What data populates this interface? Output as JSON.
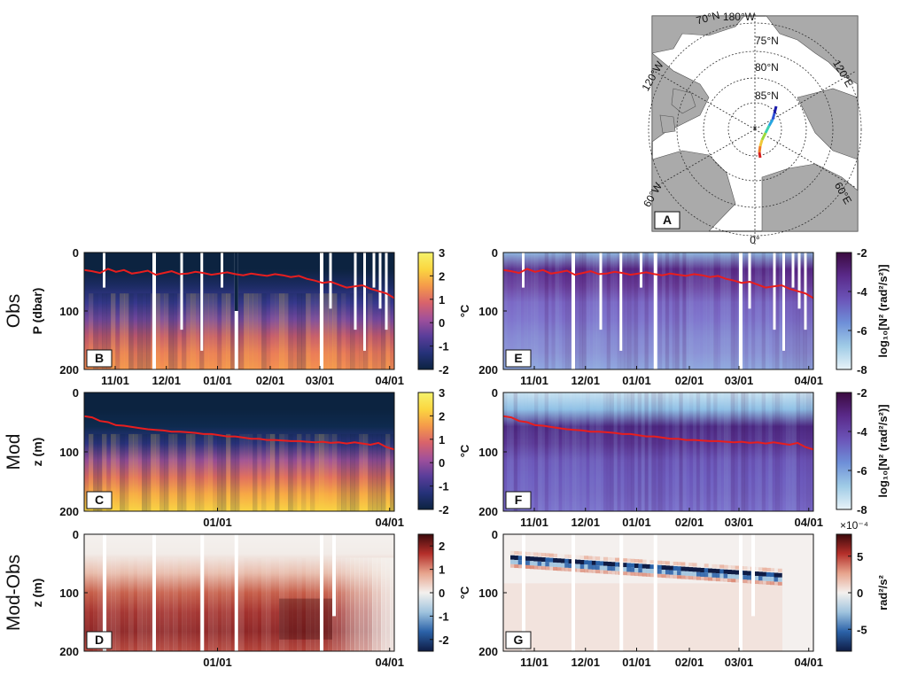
{
  "row_labels": [
    "Obs",
    "Mod",
    "Mod-Obs"
  ],
  "colors": {
    "temp_scale": [
      "#0c2340",
      "#26327a",
      "#5a3d9a",
      "#a0509b",
      "#d9636b",
      "#f59a4a",
      "#fbd640",
      "#f5f36b"
    ],
    "n2_scale": [
      "#e8f3f8",
      "#9fcbe6",
      "#6e8fd8",
      "#6b54b8",
      "#5a2a8a",
      "#3b0a40"
    ],
    "diff_scale": [
      "#0f1c45",
      "#2b62a8",
      "#9fc3de",
      "#f4f1ee",
      "#e7a48d",
      "#b52f2a",
      "#3c0a0c"
    ],
    "mld_line": "#e81e1e",
    "land": "#aaaaaa",
    "ocean": "#ffffff"
  },
  "chart_data": [
    {
      "panel": "A",
      "type": "map",
      "lat_labels": [
        "75°N",
        "80°N",
        "85°N"
      ],
      "lon_labels": [
        "70°N",
        "180°W",
        "120°W",
        "120°E",
        "60°W",
        "60°E",
        "0°"
      ],
      "track": "drifting buoy track, colored by time (blue → red)"
    },
    {
      "panel": "B",
      "type": "heatmap",
      "ylabel": "P (dbar)",
      "cbar_label": "°C",
      "ylim": [
        0,
        200
      ],
      "clim": [
        -2,
        3
      ],
      "yticks": [
        0,
        100,
        200
      ],
      "cticks": [
        3,
        2,
        1,
        0,
        -1,
        -2
      ],
      "xticks": [
        "11/01",
        "12/01",
        "01/01",
        "02/01",
        "03/01",
        "04/01"
      ],
      "mld_series": [
        30,
        32,
        35,
        28,
        33,
        30,
        36,
        34,
        31,
        38,
        35,
        32,
        37,
        36,
        33,
        35,
        38,
        36,
        34,
        37,
        39,
        36,
        38,
        40,
        37,
        39,
        42,
        40,
        45,
        48,
        52,
        50,
        55,
        60,
        58,
        56,
        62,
        66,
        70,
        78
      ]
    },
    {
      "panel": "C",
      "type": "heatmap",
      "ylabel": "z (m)",
      "cbar_label": "°C",
      "ylim": [
        0,
        200
      ],
      "clim": [
        -2,
        3
      ],
      "yticks": [
        0,
        100,
        200
      ],
      "cticks": [
        3,
        2,
        1,
        0,
        -1,
        -2
      ],
      "xticks": [
        "01/01",
        "04/01"
      ],
      "mld_series": [
        40,
        42,
        48,
        50,
        55,
        56,
        58,
        60,
        62,
        63,
        64,
        66,
        66,
        67,
        68,
        70,
        70,
        72,
        74,
        74,
        76,
        78,
        78,
        80,
        80,
        81,
        82,
        82,
        83,
        84,
        83,
        85,
        84,
        86,
        84,
        86,
        88,
        85,
        92,
        96
      ]
    },
    {
      "panel": "D",
      "type": "heatmap",
      "ylabel": "z (m)",
      "cbar_label": "°C",
      "ylim": [
        0,
        200
      ],
      "clim": [
        -2.5,
        2.5
      ],
      "yticks": [
        0,
        100,
        200
      ],
      "cticks": [
        2,
        1,
        0,
        -1,
        -2
      ],
      "xticks": [
        "01/01",
        "04/01"
      ]
    },
    {
      "panel": "E",
      "type": "heatmap",
      "cbar_label": "log₁₀[N² (rad²/s²)]",
      "ylim": [
        0,
        200
      ],
      "clim": [
        -8,
        -2
      ],
      "yticks": [
        0,
        100,
        200
      ],
      "cticks": [
        -2,
        -4,
        -6,
        -8
      ],
      "xticks": [
        "11/01",
        "12/01",
        "01/01",
        "02/01",
        "03/01",
        "04/01"
      ],
      "mld_series": [
        30,
        32,
        35,
        28,
        33,
        30,
        36,
        34,
        31,
        38,
        35,
        32,
        37,
        36,
        33,
        35,
        38,
        36,
        34,
        37,
        39,
        36,
        38,
        40,
        37,
        39,
        42,
        40,
        45,
        48,
        52,
        50,
        55,
        60,
        58,
        56,
        62,
        66,
        70,
        78
      ]
    },
    {
      "panel": "F",
      "type": "heatmap",
      "cbar_label": "log₁₀[N² (rad²/s²)]",
      "ylim": [
        0,
        200
      ],
      "clim": [
        -8,
        -2
      ],
      "yticks": [
        0,
        100,
        200
      ],
      "cticks": [
        -2,
        -4,
        -6,
        -8
      ],
      "xticks": [
        "11/01",
        "12/01",
        "01/01",
        "02/01",
        "03/01",
        "04/01"
      ],
      "mld_series": [
        40,
        42,
        48,
        50,
        55,
        56,
        58,
        60,
        62,
        63,
        64,
        66,
        66,
        67,
        68,
        70,
        70,
        72,
        74,
        74,
        76,
        78,
        78,
        80,
        80,
        81,
        82,
        82,
        83,
        84,
        83,
        85,
        84,
        86,
        84,
        86,
        88,
        85,
        92,
        96
      ]
    },
    {
      "panel": "G",
      "type": "heatmap",
      "cbar_label": "rad²/s²",
      "cbar_exponent": "×10⁻⁴",
      "ylim": [
        0,
        200
      ],
      "clim": [
        -8,
        8
      ],
      "yticks": [
        0,
        100,
        200
      ],
      "cticks": [
        5,
        0,
        -5
      ],
      "xticks": [
        "11/01",
        "12/01",
        "01/01",
        "02/01",
        "03/01",
        "04/01"
      ]
    }
  ]
}
